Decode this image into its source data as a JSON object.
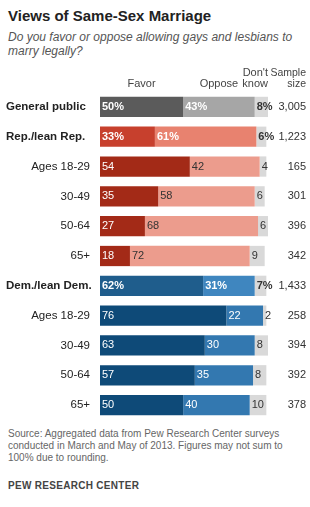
{
  "chart_data": {
    "type": "bar",
    "title": "Views of Same-Sex Marriage",
    "subtitle": "Do you favor or oppose allowing gays and lesbians to marry legally?",
    "note": "Source: Aggregated data from Pew Research Center surveys conducted in March and May of 2013. Figures may not sum to 100% due to rounding.",
    "annotations": [
      "PEW RESEARCH CENTER"
    ],
    "orientation": "horizontal",
    "stacked": true,
    "data_labels": true,
    "tick_labels": "y",
    "grid": false,
    "categories": [
      "General public",
      "Rep./lean Rep.",
      "Ages 18-29",
      "30-49",
      "50-64",
      "65+",
      "Dem./lean Dem.",
      "Ages 18-29",
      "30-49",
      "50-64",
      "65+"
    ],
    "series": [
      {
        "name": "Favor",
        "values": [
          50,
          33,
          54,
          35,
          27,
          18,
          62,
          76,
          63,
          57,
          50
        ],
        "value_labels": [
          "50%",
          "33%",
          "54",
          "35",
          "27",
          "18",
          "62%",
          "76",
          "63",
          "57",
          "50"
        ],
        "colors": [
          "#5b5b5b",
          "#c7402d",
          "#a32a17",
          "#a32a17",
          "#a32a17",
          "#a32a17",
          "#1f5d8c",
          "#0e4a78",
          "#0e4a78",
          "#0e4a78",
          "#0e4a78"
        ]
      },
      {
        "name": "Oppose",
        "values": [
          43,
          61,
          42,
          58,
          68,
          72,
          31,
          22,
          30,
          35,
          40
        ],
        "value_labels": [
          "43%",
          "61%",
          "42",
          "58",
          "68",
          "72",
          "31%",
          "22",
          "30",
          "35",
          "40"
        ],
        "colors": [
          "#a6a6a6",
          "#e8826f",
          "#ec9c8d",
          "#ec9c8d",
          "#ec9c8d",
          "#ec9c8d",
          "#3f86bf",
          "#3378b0",
          "#3378b0",
          "#3378b0",
          "#3378b0"
        ]
      },
      {
        "name": "Don't know",
        "values": [
          8,
          6,
          4,
          6,
          6,
          9,
          7,
          2,
          8,
          8,
          10
        ],
        "value_labels": [
          "8%",
          "6%",
          "4",
          "6",
          "6",
          "9",
          "7%",
          "2",
          "8",
          "8",
          "10"
        ],
        "colors": [
          "#d9d9d9",
          "#d9d9d9",
          "#d9d9d9",
          "#d9d9d9",
          "#d9d9d9",
          "#d9d9d9",
          "#d9d9d9",
          "#d9d9d9",
          "#d9d9d9",
          "#d9d9d9",
          "#d9d9d9"
        ]
      }
    ],
    "sample_size": {
      "title": "Sample size",
      "values": [
        3005,
        1223,
        165,
        301,
        396,
        342,
        1433,
        258,
        394,
        392,
        378
      ],
      "value_labels": [
        "3,005",
        "1,223",
        "165",
        "301",
        "396",
        "342",
        "1,433",
        "258",
        "394",
        "392",
        "378"
      ]
    },
    "xlim": [
      0,
      101
    ]
  }
}
